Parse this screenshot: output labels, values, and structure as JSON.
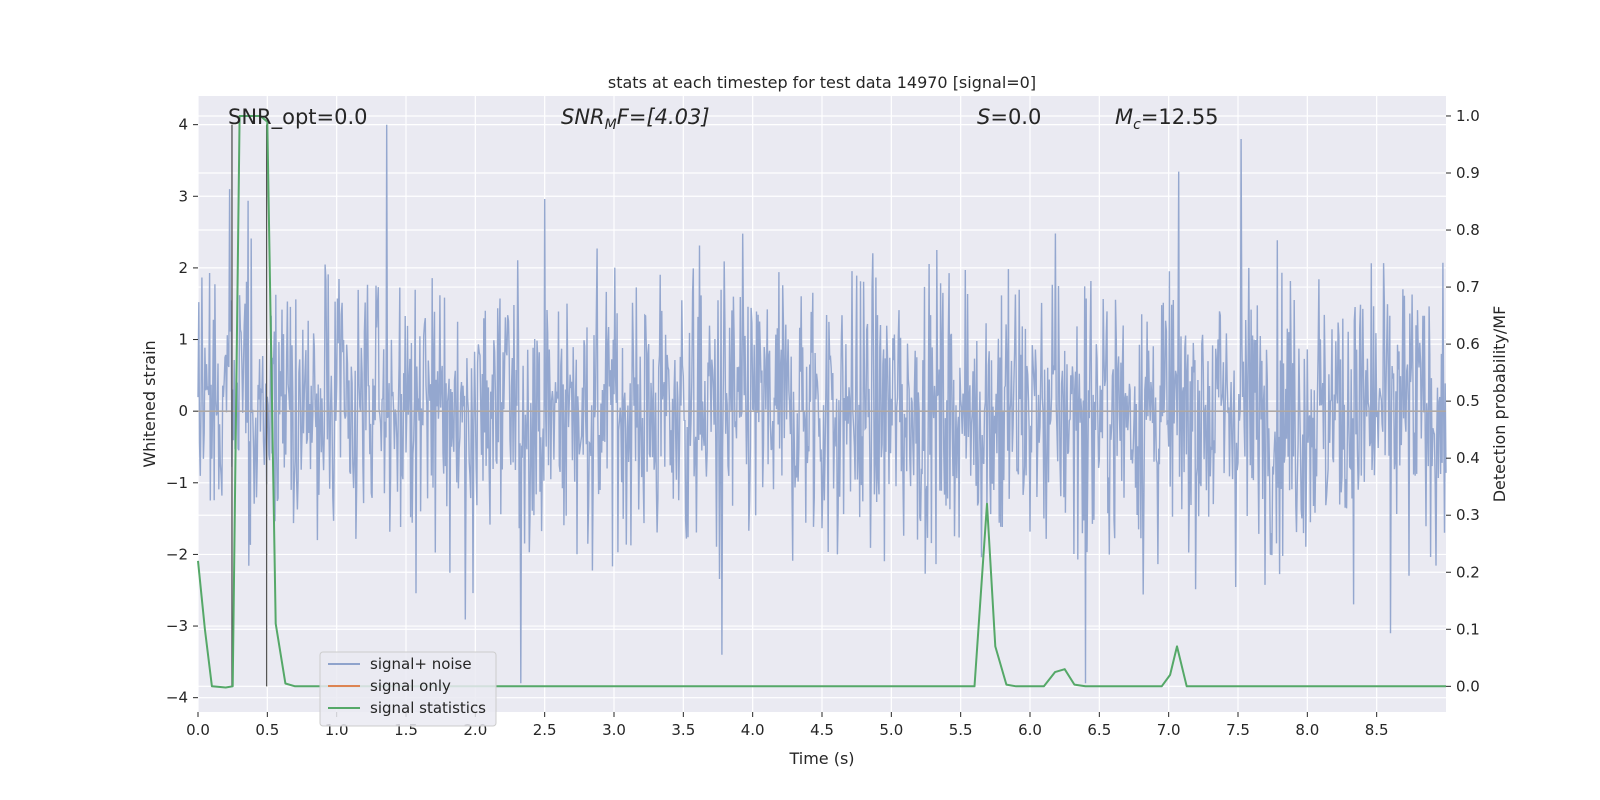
{
  "chart_data": {
    "type": "line",
    "title": "stats at each timestep for test data 14970 [signal=0]",
    "xlabel": "Time (s)",
    "ylabel": "Whitened strain",
    "y2label": "Detection probability/MF",
    "xlim": [
      0.0,
      9.0
    ],
    "ylim": [
      -4.2,
      4.4
    ],
    "y2lim": [
      -0.045,
      1.035
    ],
    "xticks": [
      0.0,
      0.5,
      1.0,
      1.5,
      2.0,
      2.5,
      3.0,
      3.5,
      4.0,
      4.5,
      5.0,
      5.5,
      6.0,
      6.5,
      7.0,
      7.5,
      8.0,
      8.5
    ],
    "xtick_labels": [
      "0.0",
      "0.5",
      "1.0",
      "1.5",
      "2.0",
      "2.5",
      "3.0",
      "3.5",
      "4.0",
      "4.5",
      "5.0",
      "5.5",
      "6.0",
      "6.5",
      "7.0",
      "7.5",
      "8.0",
      "8.5"
    ],
    "yticks": [
      -4,
      -3,
      -2,
      -1,
      0,
      1,
      2,
      3,
      4
    ],
    "ytick_labels": [
      "−4",
      "−3",
      "−2",
      "−1",
      "0",
      "1",
      "2",
      "3",
      "4"
    ],
    "y2ticks": [
      0.0,
      0.1,
      0.2,
      0.3,
      0.4,
      0.5,
      0.6,
      0.7,
      0.8,
      0.9,
      1.0
    ],
    "y2tick_labels": [
      "0.0",
      "0.1",
      "0.2",
      "0.3",
      "0.4",
      "0.5",
      "0.6",
      "0.7",
      "0.8",
      "0.9",
      "1.0"
    ],
    "grid": true,
    "legend_position": "lower-left",
    "annotations": {
      "snr_opt": "SNR_opt=0.0",
      "snr_mf_main": "SNR",
      "snr_mf_sub": "M",
      "snr_mf_rest": "F=[4.03]",
      "s_main": "S",
      "s_rest": "=0.0",
      "mc_main": "M",
      "mc_sub": "c",
      "mc_rest": "=12.55"
    },
    "vertical_markers": [
      0.245,
      0.495
    ],
    "series": [
      {
        "name": "signal+ noise",
        "color": "#8fa3cc",
        "axis": "left",
        "noise_model": {
          "samples_per_second": 180,
          "approx_peak_abs": 4.0,
          "notable_peaks": [
            {
              "t": 0.23,
              "v": 3.1
            },
            {
              "t": 1.36,
              "v": 4.0
            },
            {
              "t": 2.33,
              "v": -3.8
            },
            {
              "t": 3.78,
              "v": -3.4
            },
            {
              "t": 6.4,
              "v": -3.8
            },
            {
              "t": 7.52,
              "v": 3.8
            },
            {
              "t": 8.6,
              "v": -3.1
            }
          ]
        }
      },
      {
        "name": "signal only",
        "color": "#dd8452",
        "axis": "left",
        "x": [
          0.0,
          9.0
        ],
        "y": [
          0.0,
          0.0
        ]
      },
      {
        "name": "signal statistics",
        "color": "#55a868",
        "axis": "right",
        "x": [
          0.0,
          0.05,
          0.1,
          0.2,
          0.25,
          0.3,
          0.35,
          0.45,
          0.5,
          0.56,
          0.63,
          0.7,
          5.3,
          5.6,
          5.69,
          5.75,
          5.83,
          5.9,
          6.1,
          6.18,
          6.25,
          6.32,
          6.4,
          6.95,
          7.01,
          7.06,
          7.13,
          7.2,
          9.0
        ],
        "y": [
          0.22,
          0.1,
          0.0,
          -0.002,
          0.0,
          1.0,
          1.0,
          1.0,
          0.99,
          0.11,
          0.005,
          0.0,
          0.0,
          0.0,
          0.32,
          0.07,
          0.003,
          0.0,
          0.0,
          0.025,
          0.03,
          0.003,
          0.0,
          0.0,
          0.02,
          0.07,
          0.0,
          0.0,
          0.0
        ]
      }
    ]
  }
}
